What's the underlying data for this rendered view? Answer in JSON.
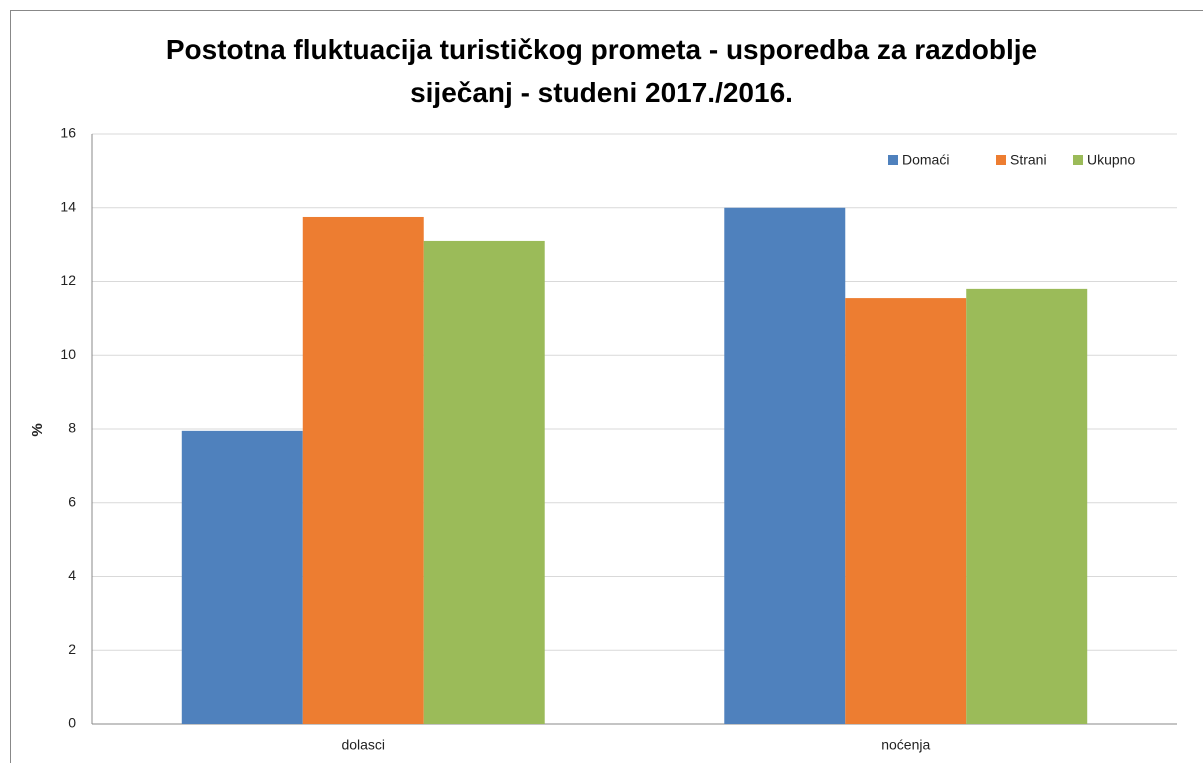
{
  "chart_data": {
    "type": "bar",
    "title": "Postotna fluktuacija turističkog prometa - usporedba za razdoblje siječanj - studeni 2017./2016.",
    "ylabel": "%",
    "categories": [
      "dolasci",
      "noćenja"
    ],
    "series": [
      {
        "name": "Domaći",
        "color": "#4f81bd",
        "values": [
          7.95,
          14.0
        ]
      },
      {
        "name": "Strani",
        "color": "#ed7d31",
        "values": [
          13.75,
          11.55
        ]
      },
      {
        "name": "Ukupno",
        "color": "#9bbb59",
        "values": [
          13.1,
          11.8
        ]
      }
    ],
    "ylim": [
      0,
      16
    ],
    "yticks": [
      0,
      2,
      4,
      6,
      8,
      10,
      12,
      14,
      16
    ],
    "grid": true,
    "legend": "top-right"
  }
}
